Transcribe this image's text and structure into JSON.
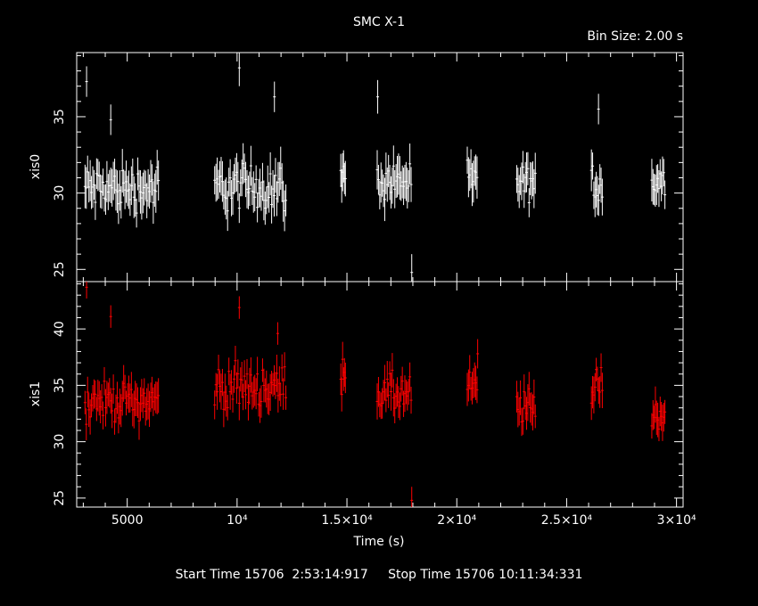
{
  "chart_data": {
    "type": "scatter",
    "title": "SMC X-1",
    "bin_size_label": "Bin Size: 2.00 s",
    "xlabel": "Time (s)",
    "xlim": [
      2700,
      30300
    ],
    "x_tick_labels": [
      "5000",
      "10⁴",
      "1.5×10⁴",
      "2×10⁴",
      "2.5×10⁴",
      "3×10⁴"
    ],
    "x_tick_values": [
      5000,
      10000,
      15000,
      20000,
      25000,
      30000
    ],
    "panels": [
      {
        "ylabel": "xis0",
        "ylim": [
          24.2,
          39.2
        ],
        "y_ticks": [
          25,
          30,
          35
        ],
        "color": "#ffffff",
        "segments": [
          {
            "start": 3050,
            "end": 6450,
            "mean": 30.3,
            "spread": 1.0,
            "err": 1.1,
            "count": 58
          },
          {
            "start": 8950,
            "end": 12250,
            "mean": 30.4,
            "spread": 1.1,
            "err": 1.1,
            "count": 56
          },
          {
            "start": 14700,
            "end": 14950,
            "mean": 31.0,
            "spread": 0.6,
            "err": 1.1,
            "count": 6
          },
          {
            "start": 16350,
            "end": 17950,
            "mean": 30.8,
            "spread": 0.9,
            "err": 1.1,
            "count": 28
          },
          {
            "start": 20450,
            "end": 20950,
            "mean": 30.8,
            "spread": 0.7,
            "err": 1.1,
            "count": 9
          },
          {
            "start": 22700,
            "end": 23600,
            "mean": 30.6,
            "spread": 0.8,
            "err": 1.1,
            "count": 16
          },
          {
            "start": 26100,
            "end": 26650,
            "mean": 30.6,
            "spread": 1.0,
            "err": 1.1,
            "count": 10
          },
          {
            "start": 28850,
            "end": 29500,
            "mean": 30.7,
            "spread": 0.7,
            "err": 1.1,
            "count": 12
          }
        ],
        "outliers": [
          {
            "x": 3150,
            "y": 37.3,
            "err": 1.0
          },
          {
            "x": 4250,
            "y": 34.8,
            "err": 1.0
          },
          {
            "x": 10100,
            "y": 38.2,
            "err": 1.2
          },
          {
            "x": 11700,
            "y": 36.3,
            "err": 1.0
          },
          {
            "x": 16400,
            "y": 36.3,
            "err": 1.1
          },
          {
            "x": 17950,
            "y": 24.8,
            "err": 1.2
          },
          {
            "x": 26450,
            "y": 35.5,
            "err": 1.0
          }
        ]
      },
      {
        "ylabel": "xis1",
        "ylim": [
          24.2,
          44.2
        ],
        "y_ticks": [
          25,
          30,
          35,
          40
        ],
        "color": "#ff0000",
        "segments": [
          {
            "start": 3050,
            "end": 6450,
            "mean": 33.6,
            "spread": 1.1,
            "err": 1.3,
            "count": 58
          },
          {
            "start": 8950,
            "end": 12250,
            "mean": 34.8,
            "spread": 1.3,
            "err": 1.3,
            "count": 56
          },
          {
            "start": 14700,
            "end": 14950,
            "mean": 36.5,
            "spread": 1.3,
            "err": 1.3,
            "count": 6
          },
          {
            "start": 16350,
            "end": 17950,
            "mean": 34.2,
            "spread": 1.3,
            "err": 1.3,
            "count": 28
          },
          {
            "start": 20450,
            "end": 20950,
            "mean": 34.6,
            "spread": 1.2,
            "err": 1.3,
            "count": 9
          },
          {
            "start": 22700,
            "end": 23600,
            "mean": 33.0,
            "spread": 1.2,
            "err": 1.3,
            "count": 16
          },
          {
            "start": 26100,
            "end": 26650,
            "mean": 35.0,
            "spread": 1.5,
            "err": 1.3,
            "count": 10
          },
          {
            "start": 28850,
            "end": 29500,
            "mean": 32.4,
            "spread": 0.9,
            "err": 1.3,
            "count": 12
          }
        ],
        "outliers": [
          {
            "x": 3150,
            "y": 43.7,
            "err": 1.0
          },
          {
            "x": 4250,
            "y": 41.1,
            "err": 1.0
          },
          {
            "x": 10100,
            "y": 41.9,
            "err": 1.0
          },
          {
            "x": 11850,
            "y": 39.6,
            "err": 1.0
          },
          {
            "x": 17950,
            "y": 24.8,
            "err": 1.2
          },
          {
            "x": 20950,
            "y": 37.8,
            "err": 1.3
          }
        ]
      }
    ]
  },
  "footer": {
    "start_label": "Start Time 15706  2:53:14:917",
    "stop_label": "Stop Time 15706 10:11:34:331"
  }
}
